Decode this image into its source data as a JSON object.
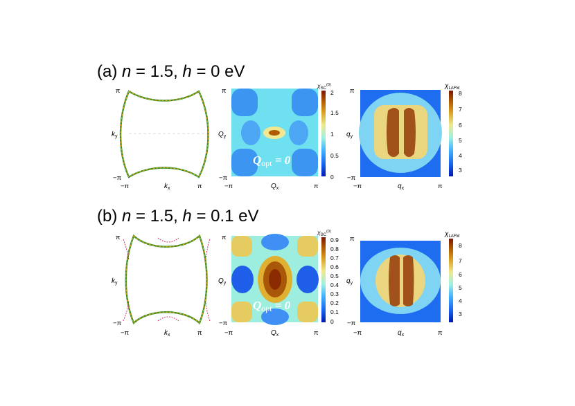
{
  "colors": {
    "fermi_line_outer": "#2e8b2e",
    "fermi_line_inner": "#e8a800",
    "fermi_pocket": "#d0205a",
    "dashed_axis": "#cccccc"
  },
  "panels": [
    {
      "title": "(a) n = 1.5, h = 0 eV",
      "title_parts": {
        "label": "(a) ",
        "n_sym": "n",
        "n_val": " = 1.5, ",
        "h_sym": "h",
        "h_val": " = 0 eV"
      },
      "fermi": {
        "xlabel": "k",
        "xsub": "x",
        "ylabel": "k",
        "ysub": "y",
        "x_ticks": [
          "−π",
          "π"
        ],
        "y_ticks": [
          "π",
          "−π"
        ]
      },
      "sc": {
        "xlabel": "Q",
        "xsub": "x",
        "ylabel": "Q",
        "ysub": "y",
        "x_ticks": [
          "−π",
          "π"
        ],
        "y_ticks": [
          "π",
          "−π"
        ],
        "cb_label": "χ",
        "cb_sub": "SC",
        "cb_sup": "(0)",
        "cb_ticks": [
          "2",
          "1.5",
          "1",
          "0.5",
          "0"
        ],
        "annotation": {
          "q": "Q",
          "sub": "opt",
          "rest": " = 0"
        }
      },
      "afm": {
        "xlabel": "q",
        "xsub": "x",
        "ylabel": "q",
        "ysub": "y",
        "x_ticks": [
          "−π",
          "π"
        ],
        "y_ticks": [
          "π",
          "−π"
        ],
        "cb_label": "χ",
        "cb_sub": "LAFM",
        "cb_ticks": [
          "8",
          "7",
          "6",
          "5",
          "4",
          "3"
        ]
      }
    },
    {
      "title": "(b) n = 1.5, h = 0.1 eV",
      "title_parts": {
        "label": "(b) ",
        "n_sym": "n",
        "n_val": " = 1.5, ",
        "h_sym": "h",
        "h_val": " = 0.1 eV"
      },
      "fermi": {
        "xlabel": "k",
        "xsub": "x",
        "ylabel": "k",
        "ysub": "y",
        "x_ticks": [
          "−π",
          "π"
        ],
        "y_ticks": [
          "π",
          "−π"
        ]
      },
      "sc": {
        "xlabel": "Q",
        "xsub": "x",
        "ylabel": "Q",
        "ysub": "y",
        "x_ticks": [
          "−π",
          "π"
        ],
        "y_ticks": [
          "π",
          "−π"
        ],
        "cb_label": "χ",
        "cb_sub": "SC",
        "cb_sup": "(0)",
        "cb_ticks": [
          "0.9",
          "0.8",
          "0.7",
          "0.6",
          "0.5",
          "0.4",
          "0.3",
          "0.2",
          "0.1",
          "0"
        ],
        "annotation": {
          "q": "Q",
          "sub": "opt",
          "rest": " = 0"
        }
      },
      "afm": {
        "xlabel": "q",
        "xsub": "x",
        "ylabel": "q",
        "ysub": "y",
        "x_ticks": [
          "−π",
          "π"
        ],
        "y_ticks": [
          "π",
          "−π"
        ],
        "cb_label": "χ",
        "cb_sub": "LAFM",
        "cb_ticks": [
          "8",
          "7",
          "6",
          "5",
          "4",
          "3"
        ]
      }
    }
  ]
}
